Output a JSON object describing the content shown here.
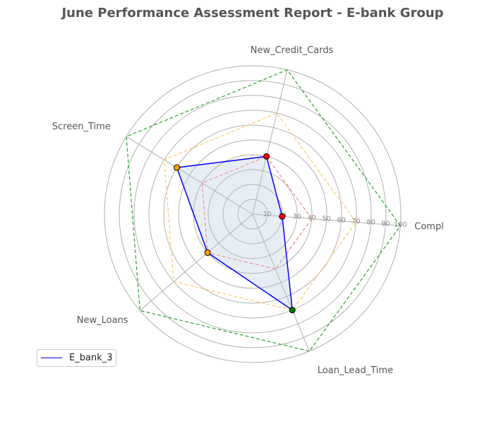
{
  "chart_data": {
    "type": "radar",
    "title": "June Performance Assessment Report - E-bank Group",
    "axes": [
      "Compl",
      "New_Credit_Cards",
      "Screen_Time",
      "New_Loans",
      "Loan_Lead_Time"
    ],
    "rlim": [
      0,
      100
    ],
    "r_ticks": [
      10,
      20,
      30,
      40,
      50,
      60,
      70,
      80,
      90,
      100
    ],
    "series": [
      {
        "name": "E_bank_3",
        "values": [
          20,
          40,
          60,
          40,
          70
        ],
        "color": "#0000ff",
        "fill": "#b0c4de",
        "marker_colors": [
          "#ff0000",
          "#ff0000",
          "#ffa500",
          "#ffa500",
          "#008000"
        ]
      }
    ],
    "reference_levels": [
      {
        "values": [
          40,
          40,
          40,
          40,
          40
        ],
        "color": "#ff8080"
      },
      {
        "values": [
          70,
          70,
          70,
          70,
          70
        ],
        "color": "#ffc966"
      },
      {
        "values": [
          100,
          100,
          100,
          100,
          100
        ],
        "color": "#2ca02c"
      }
    ],
    "legend_position": "lower-left",
    "grid": true
  }
}
